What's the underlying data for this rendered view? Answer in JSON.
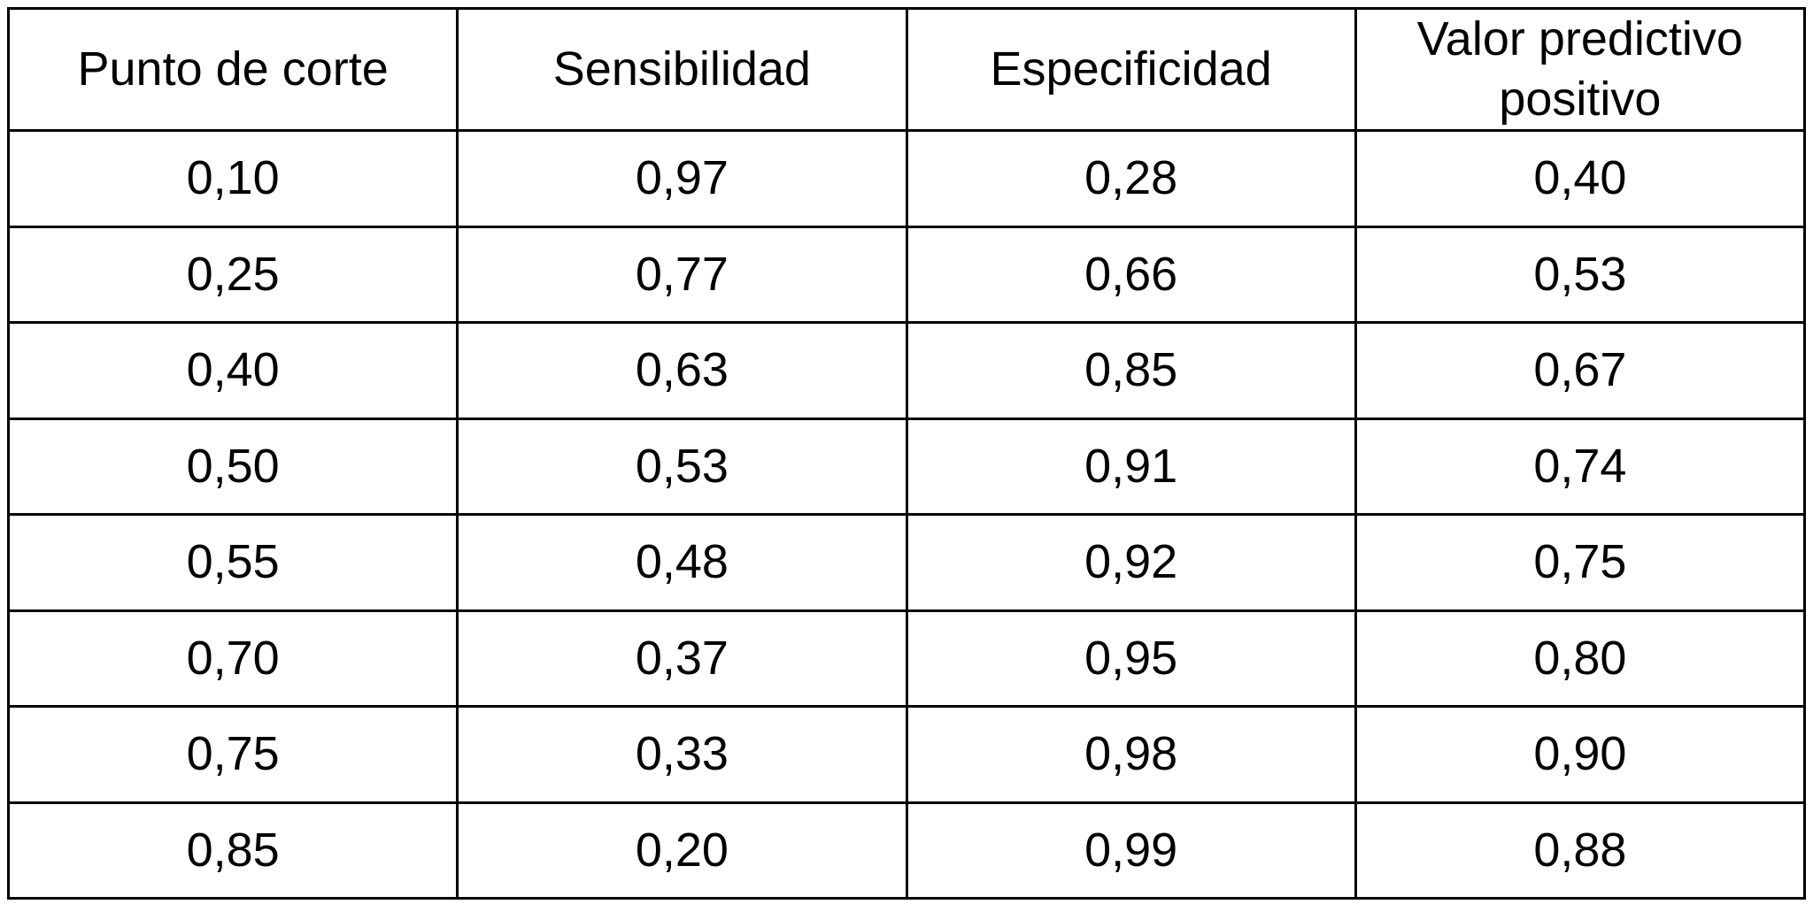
{
  "table": {
    "columns": [
      "Punto de corte",
      "Sensibilidad",
      "Especificidad",
      "Valor predictivo positivo"
    ],
    "rows": [
      [
        "0,10",
        "0,97",
        "0,28",
        "0,40"
      ],
      [
        "0,25",
        "0,77",
        "0,66",
        "0,53"
      ],
      [
        "0,40",
        "0,63",
        "0,85",
        "0,67"
      ],
      [
        "0,50",
        "0,53",
        "0,91",
        "0,74"
      ],
      [
        "0,55",
        "0,48",
        "0,92",
        "0,75"
      ],
      [
        "0,70",
        "0,37",
        "0,95",
        "0,80"
      ],
      [
        "0,75",
        "0,33",
        "0,98",
        "0,90"
      ],
      [
        "0,85",
        "0,20",
        "0,99",
        "0,88"
      ]
    ]
  },
  "style": {
    "border_color": "#000000",
    "background_color": "#ffffff",
    "text_color": "#000000",
    "decimal_separator": ","
  },
  "chart_data": {
    "type": "table",
    "title": "",
    "columns": [
      "Punto de corte",
      "Sensibilidad",
      "Especificidad",
      "Valor predictivo positivo"
    ],
    "x": [
      0.1,
      0.25,
      0.4,
      0.5,
      0.55,
      0.7,
      0.75,
      0.85
    ],
    "series": [
      {
        "name": "Sensibilidad",
        "values": [
          0.97,
          0.77,
          0.63,
          0.53,
          0.48,
          0.37,
          0.33,
          0.2
        ]
      },
      {
        "name": "Especificidad",
        "values": [
          0.28,
          0.66,
          0.85,
          0.91,
          0.92,
          0.95,
          0.98,
          0.99
        ]
      },
      {
        "name": "Valor predictivo positivo",
        "values": [
          0.4,
          0.53,
          0.67,
          0.74,
          0.75,
          0.8,
          0.9,
          0.88
        ]
      }
    ]
  }
}
